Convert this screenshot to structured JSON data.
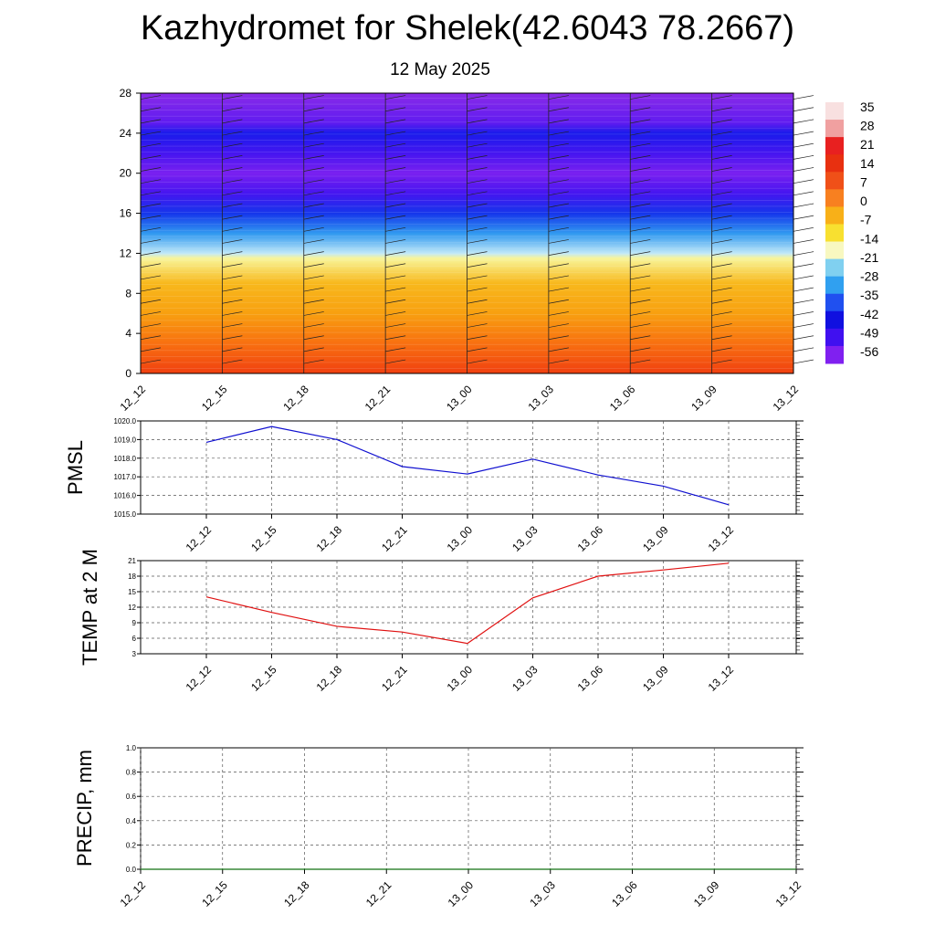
{
  "title": "Kazhydromet for Shelek(42.6043 78.2667)",
  "subtitle": "12 May 2025",
  "chart_data": [
    {
      "type": "heatmap",
      "name": "temperature-height-section",
      "x_labels": [
        "12_12",
        "12_15",
        "12_18",
        "12_21",
        "13_00",
        "13_03",
        "13_06",
        "13_09",
        "13_12"
      ],
      "y_ticks": [
        0,
        4,
        8,
        12,
        16,
        20,
        24,
        28
      ],
      "ylim": [
        0,
        28
      ],
      "colorbar_labels": [
        "35",
        "28",
        "21",
        "14",
        "7",
        "0",
        "-7",
        "-14",
        "-21",
        "-28",
        "-35",
        "-42",
        "-49",
        "-56"
      ],
      "colorbar_colors": [
        "#f8e0e0",
        "#f0a0a0",
        "#e82020",
        "#e83010",
        "#f05018",
        "#f88020",
        "#f8b018",
        "#f8e030",
        "#f8f8c0",
        "#80d0f0",
        "#30a0f0",
        "#2050f0",
        "#1010e0",
        "#4010f0",
        "#8020f0"
      ],
      "profile": [
        {
          "h": 0,
          "t": 20
        },
        {
          "h": 3,
          "t": 14
        },
        {
          "h": 6,
          "t": 8
        },
        {
          "h": 9,
          "t": 2
        },
        {
          "h": 11.5,
          "t": -12
        },
        {
          "h": 12,
          "t": -18
        },
        {
          "h": 14,
          "t": -30
        },
        {
          "h": 16,
          "t": -42
        },
        {
          "h": 18,
          "t": -52
        },
        {
          "h": 20,
          "t": -56
        },
        {
          "h": 22,
          "t": -52
        },
        {
          "h": 24,
          "t": -46
        },
        {
          "h": 25,
          "t": -54
        },
        {
          "h": 28,
          "t": -60
        }
      ]
    },
    {
      "type": "line",
      "name": "pmsl",
      "ylabel": "PMSL",
      "categories": [
        "12_12",
        "12_15",
        "12_18",
        "12_21",
        "13_00",
        "13_03",
        "13_06",
        "13_09",
        "13_12"
      ],
      "y_ticks": [
        "1015.0",
        "1016.0",
        "1017.0",
        "1018.0",
        "1019.0",
        "1020.0"
      ],
      "ylim": [
        1015,
        1020
      ],
      "color": "#1010d0",
      "values": [
        1018.85,
        1019.7,
        1019.0,
        1017.55,
        1017.15,
        1017.95,
        1017.1,
        1016.5,
        1015.5
      ]
    },
    {
      "type": "line",
      "name": "temp2m",
      "ylabel": "TEMP at 2 M",
      "categories": [
        "12_12",
        "12_15",
        "12_18",
        "12_21",
        "13_00",
        "13_03",
        "13_06",
        "13_09",
        "13_12"
      ],
      "y_ticks": [
        "3",
        "6",
        "9",
        "12",
        "15",
        "18",
        "21"
      ],
      "ylim": [
        3,
        21
      ],
      "color": "#e01010",
      "values": [
        14.0,
        11.0,
        8.3,
        7.2,
        5.0,
        13.8,
        18.0,
        19.2,
        20.5
      ]
    },
    {
      "type": "line",
      "name": "precip",
      "ylabel": "PRECIP, mm",
      "categories": [
        "12_12",
        "12_15",
        "12_18",
        "12_21",
        "13_00",
        "13_03",
        "13_06",
        "13_09",
        "13_12"
      ],
      "y_ticks": [
        "0.0",
        "0.2",
        "0.4",
        "0.6",
        "0.8",
        "1.0"
      ],
      "ylim": [
        0,
        1
      ],
      "color": "#107010",
      "values": [
        0,
        0,
        0,
        0,
        0,
        0,
        0,
        0,
        0
      ]
    }
  ]
}
